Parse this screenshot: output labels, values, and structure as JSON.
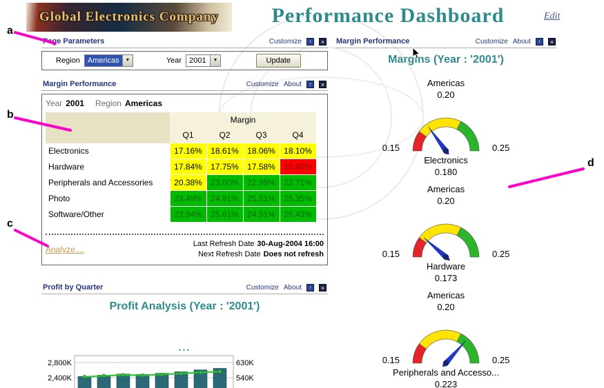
{
  "page": {
    "logo_text": "Global Electronics Company",
    "title": "Performance Dashboard",
    "edit_link": "Edit",
    "colors": {
      "brand_teal": "#2E8B8B",
      "portlet_title_navy": "#24357D",
      "annotation_magenta": "#FF00CC",
      "analyze_orange": "#C8954E"
    }
  },
  "icons": {
    "dropdown_glyph": "▼",
    "maximize_glyph": "↑",
    "close_glyph": "×"
  },
  "annotations": {
    "a": "a",
    "b": "b",
    "c": "c",
    "d": "d"
  },
  "common": {
    "customize": "Customize",
    "about": "About"
  },
  "page_parameters": {
    "title": "Page Parameters",
    "region_label": "Region",
    "region_value": "Americas",
    "year_label": "Year",
    "year_value": "2001",
    "update_button": "Update"
  },
  "margin_portlet": {
    "title": "Margin Performance",
    "year_label": "Year",
    "year_value": "2001",
    "region_label": "Region",
    "region_value": "Americas",
    "table": {
      "group_header": "Margin",
      "columns": [
        "Q1",
        "Q2",
        "Q3",
        "Q4"
      ],
      "rows": [
        {
          "label": "Electronics",
          "values": [
            "17.16%",
            "18.61%",
            "18.06%",
            "18.10%"
          ],
          "colors": [
            "yellow",
            "yellow",
            "yellow",
            "yellow"
          ]
        },
        {
          "label": "Hardware",
          "values": [
            "17.84%",
            "17.75%",
            "17.58%",
            "15.80%"
          ],
          "colors": [
            "yellow",
            "yellow",
            "yellow",
            "red"
          ]
        },
        {
          "label": "Peripherals and Accessories",
          "values": [
            "20.38%",
            "23.00%",
            "22.99%",
            "22.71%"
          ],
          "colors": [
            "yellow",
            "green",
            "green",
            "green"
          ]
        },
        {
          "label": "Photo",
          "values": [
            "23.49%",
            "24.81%",
            "25.81%",
            "25.35%"
          ],
          "colors": [
            "green",
            "green",
            "green",
            "green"
          ]
        },
        {
          "label": "Software/Other",
          "values": [
            "23.94%",
            "25.61%",
            "24.51%",
            "25.43%"
          ],
          "colors": [
            "green",
            "green",
            "green",
            "green"
          ]
        }
      ]
    },
    "status_colors": {
      "yellow": {
        "bg": "#FFFF00",
        "fg": "#000000"
      },
      "red": {
        "bg": "#FF0000",
        "fg": "#8B0000"
      },
      "green": {
        "bg": "#00BB00",
        "fg": "#006600"
      }
    },
    "analyze_link": "Analyze....",
    "last_refresh_label": "Last Refresh Date",
    "last_refresh_value": "30-Aug-2004 16:00",
    "next_refresh_label": "Next Refresh Date",
    "next_refresh_value": "Does not refresh"
  },
  "profit_portlet": {
    "title": "Profit by Quarter",
    "ellipsis": "..."
  },
  "gauge_portlet": {
    "title": "Margin Performance"
  },
  "chart_data": [
    {
      "type": "gauge",
      "title": "Margins (Year : '2001')",
      "min": 0.15,
      "max": 0.25,
      "min_label": "0.15",
      "max_label": "0.25",
      "top_tick_label": "0.20",
      "bands": [
        {
          "from": 0.15,
          "to": 0.17,
          "color": "#E3242B"
        },
        {
          "from": 0.17,
          "to": 0.215,
          "color": "#FFE400"
        },
        {
          "from": 0.215,
          "to": 0.25,
          "color": "#2BB52B"
        }
      ],
      "needle_color": "#2238C8",
      "gauges": [
        {
          "group": "Americas",
          "label": "Electronics",
          "value": 0.18,
          "display": "0.180"
        },
        {
          "group": "Americas",
          "label": "Hardware",
          "value": 0.173,
          "display": "0.173"
        },
        {
          "group": "Americas",
          "label": "Peripherals and Accesso...",
          "value": 0.223,
          "display": "0.223"
        }
      ]
    },
    {
      "type": "bar+line",
      "title": "Profit Analysis (Year : '2001')",
      "left_axis": {
        "ticks": [
          "2,800K",
          "2,400K"
        ],
        "top": 2800,
        "bottom": 2400,
        "series": "bars"
      },
      "right_axis": {
        "ticks": [
          "630K",
          "540K"
        ],
        "top": 630,
        "bottom": 540,
        "series": "line"
      },
      "bars": [
        2430,
        2465,
        2495,
        2485,
        2515,
        2555,
        2605,
        2645
      ],
      "line": [
        545,
        551,
        556,
        554,
        559,
        565,
        571,
        576
      ],
      "bar_color": "#2B6878",
      "line_color": "#2FC62F"
    }
  ]
}
